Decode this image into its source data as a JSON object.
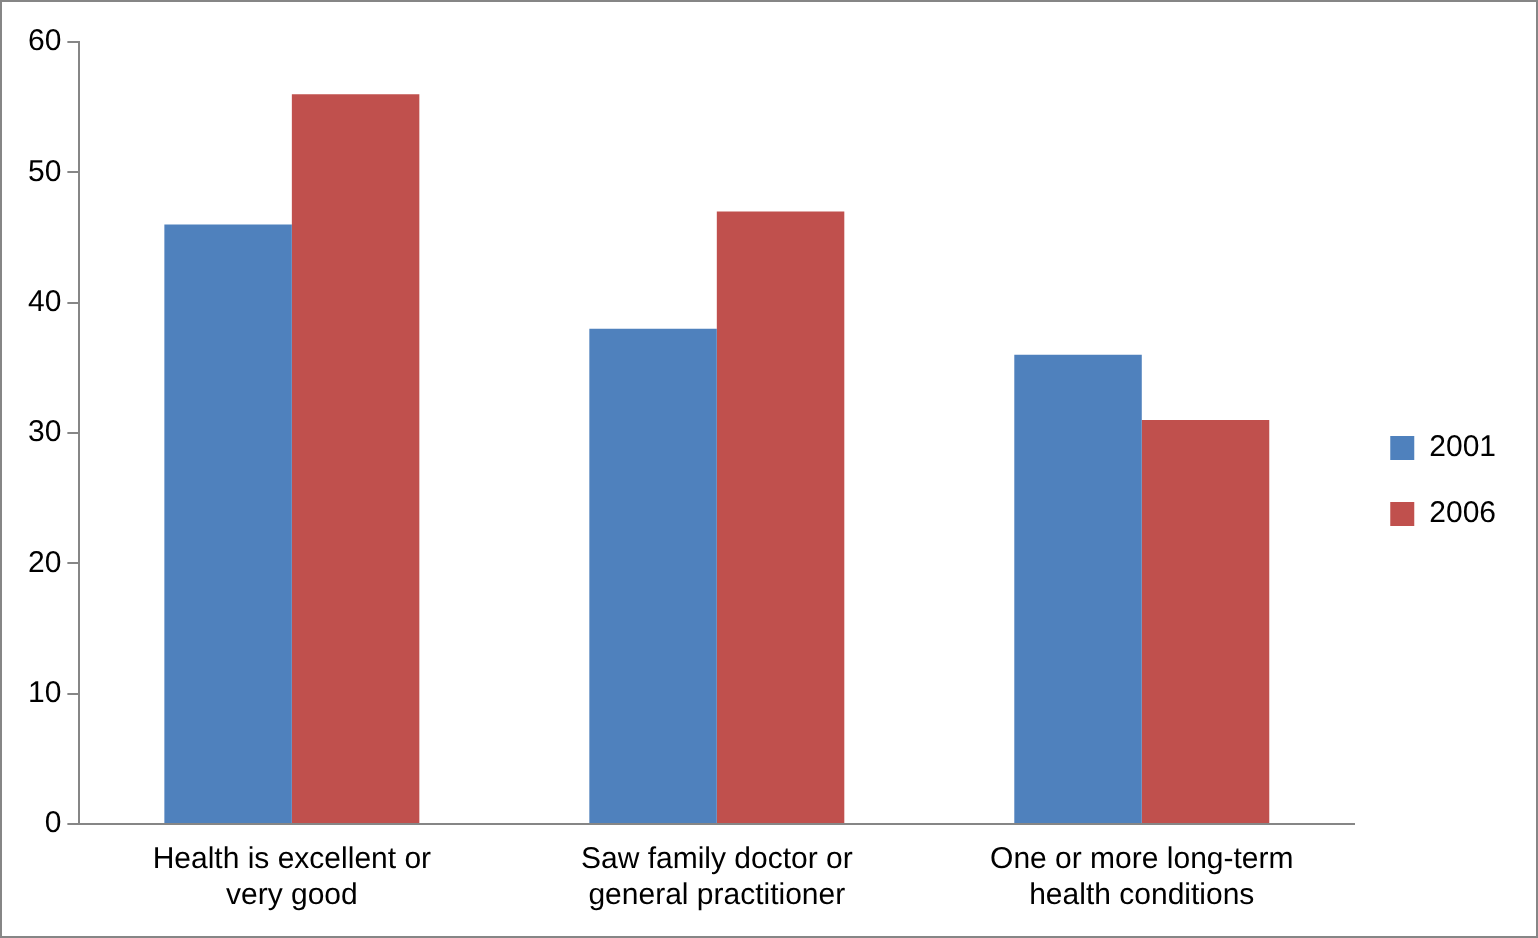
{
  "chart_data": {
    "type": "bar",
    "categories": [
      "Health is excellent or very good",
      "Saw family doctor or general practitioner",
      "One or more long-term health conditions"
    ],
    "series": [
      {
        "name": "2001",
        "color": "#4f81bd",
        "values": [
          46,
          38,
          36
        ]
      },
      {
        "name": "2006",
        "color": "#c0504d",
        "values": [
          56,
          47,
          31
        ]
      }
    ],
    "ylim": [
      0,
      60
    ],
    "yticks": [
      0,
      10,
      20,
      30,
      40,
      50,
      60
    ],
    "grid": false,
    "legend": "right"
  }
}
